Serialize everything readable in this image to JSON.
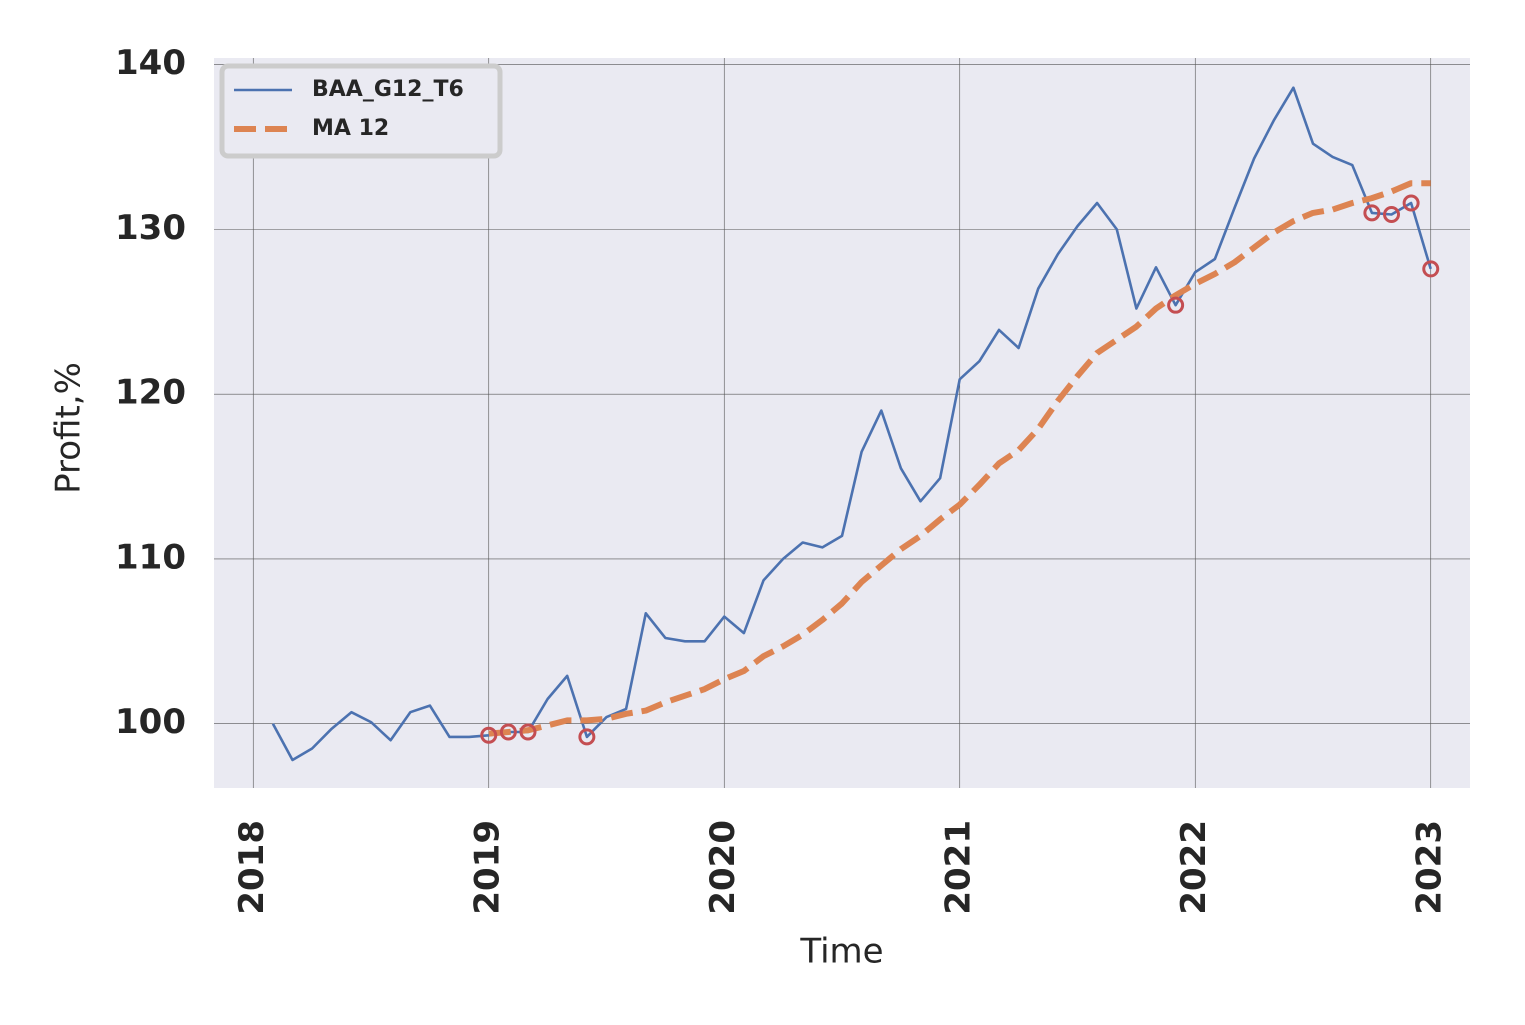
{
  "chart_data": {
    "type": "line",
    "xlabel": "Time",
    "ylabel": "Profit,%",
    "x": [
      "2018-02",
      "2018-03",
      "2018-04",
      "2018-05",
      "2018-06",
      "2018-07",
      "2018-08",
      "2018-09",
      "2018-10",
      "2018-11",
      "2018-12",
      "2019-01",
      "2019-02",
      "2019-03",
      "2019-04",
      "2019-05",
      "2019-06",
      "2019-07",
      "2019-08",
      "2019-09",
      "2019-10",
      "2019-11",
      "2019-12",
      "2020-01",
      "2020-02",
      "2020-03",
      "2020-04",
      "2020-05",
      "2020-06",
      "2020-07",
      "2020-08",
      "2020-09",
      "2020-10",
      "2020-11",
      "2020-12",
      "2021-01",
      "2021-02",
      "2021-03",
      "2021-04",
      "2021-05",
      "2021-06",
      "2021-07",
      "2021-08",
      "2021-09",
      "2021-10",
      "2021-11",
      "2021-12",
      "2022-01",
      "2022-02",
      "2022-03",
      "2022-04",
      "2022-05",
      "2022-06",
      "2022-07",
      "2022-08",
      "2022-09",
      "2022-10",
      "2022-11",
      "2022-12",
      "2023-01"
    ],
    "series": [
      {
        "name": "BAA_G12_T6",
        "color": "#4c72b0",
        "style": "solid",
        "values": [
          100.0,
          97.8,
          98.5,
          99.7,
          100.7,
          100.1,
          99.0,
          100.7,
          101.1,
          99.2,
          99.2,
          99.3,
          99.5,
          99.5,
          101.5,
          102.9,
          99.2,
          100.4,
          100.9,
          106.7,
          105.2,
          105.0,
          105.0,
          106.5,
          105.5,
          108.7,
          110.0,
          111.0,
          110.7,
          111.4,
          116.5,
          119.0,
          115.5,
          113.5,
          114.9,
          120.9,
          122.0,
          123.9,
          122.8,
          126.4,
          128.5,
          130.2,
          131.6,
          130.0,
          125.2,
          127.7,
          125.4,
          127.4,
          128.2,
          131.3,
          134.3,
          136.6,
          138.6,
          135.2,
          134.4,
          133.9,
          131.0,
          130.9,
          131.6,
          127.6
        ]
      },
      {
        "name": "MA 12",
        "color": "#dd8452",
        "style": "dashed",
        "values": [
          null,
          null,
          null,
          null,
          null,
          null,
          null,
          null,
          null,
          null,
          null,
          99.4,
          99.5,
          99.6,
          99.9,
          100.2,
          100.2,
          100.3,
          100.6,
          100.8,
          101.3,
          101.7,
          102.1,
          102.7,
          103.2,
          104.1,
          104.7,
          105.4,
          106.3,
          107.3,
          108.6,
          109.6,
          110.6,
          111.4,
          112.4,
          113.3,
          114.5,
          115.8,
          116.6,
          117.9,
          119.6,
          121.1,
          122.5,
          123.3,
          124.1,
          125.2,
          126.0,
          126.7,
          127.3,
          128.0,
          128.9,
          129.8,
          130.5,
          131.0,
          131.2,
          131.6,
          131.9,
          132.3,
          132.8,
          132.8
        ]
      },
      {
        "color": "#c44e52",
        "style": "markers",
        "values": [
          null,
          null,
          null,
          null,
          null,
          null,
          null,
          null,
          null,
          null,
          null,
          99.3,
          99.5,
          99.5,
          null,
          null,
          99.2,
          null,
          null,
          null,
          null,
          null,
          null,
          null,
          null,
          null,
          null,
          null,
          null,
          null,
          null,
          null,
          null,
          null,
          null,
          null,
          null,
          null,
          null,
          null,
          null,
          null,
          null,
          null,
          null,
          null,
          125.4,
          null,
          null,
          null,
          null,
          null,
          null,
          null,
          null,
          null,
          131.0,
          130.9,
          131.6,
          127.6
        ]
      }
    ],
    "xlim": [
      "2017-11",
      "2023-03"
    ],
    "xticks": [
      "2018",
      "2019",
      "2020",
      "2021",
      "2022",
      "2023"
    ],
    "ylim": [
      96.1,
      140.4
    ],
    "yticks": [
      100,
      110,
      120,
      130,
      140
    ],
    "grid": true,
    "legend": "upper left",
    "background": "#eaeaf2"
  }
}
